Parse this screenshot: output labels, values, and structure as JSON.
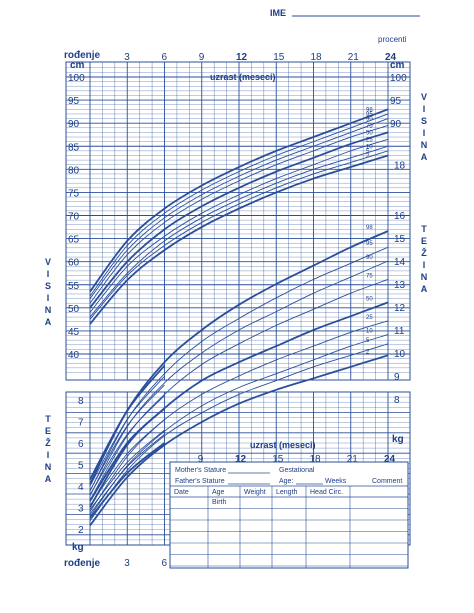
{
  "header": {
    "name_label": "IME",
    "percentiles_label": "procenti"
  },
  "chart_data": {
    "type": "line",
    "x_axis": {
      "label": "uzrast (meseci)",
      "start_label": "rođenje",
      "range": [
        0,
        24
      ],
      "ticks_top": [
        3,
        6,
        9,
        12,
        15,
        18,
        21,
        24
      ],
      "ticks_bottom": [
        3,
        6
      ],
      "ticks_mid": [
        9,
        12,
        15,
        18,
        21,
        24
      ]
    },
    "length_axis": {
      "unit": "cm",
      "label_left": "V I S I N A",
      "label_right": "V I S I N A",
      "range": [
        35,
        102
      ],
      "ticks_left": [
        100,
        95,
        90,
        85,
        80,
        75,
        70,
        65,
        60,
        55,
        50,
        45,
        40
      ],
      "ticks_right": [
        100,
        95,
        90
      ]
    },
    "weight_axis": {
      "unit": "kg",
      "label_left": "T E Ž I N A",
      "label_right": "T E Ž I N A",
      "range_right": [
        6.5,
        16
      ],
      "ticks_right_upper": [
        16,
        15,
        14,
        13,
        12,
        11,
        10,
        9,
        8
      ],
      "ticks_right_lower_kg": [
        18
      ],
      "range_left": [
        1,
        8.5
      ],
      "ticks_left": [
        8,
        7,
        6,
        5,
        4,
        3,
        2
      ]
    },
    "percentiles": [
      "98",
      "95",
      "90",
      "75",
      "50",
      "25",
      "10",
      "5",
      "2"
    ],
    "series_length": [
      {
        "name": "98",
        "values": [
          [
            0,
            53.5
          ],
          [
            3,
            64.5
          ],
          [
            6,
            71.5
          ],
          [
            9,
            76.5
          ],
          [
            12,
            80.5
          ],
          [
            15,
            84
          ],
          [
            18,
            87
          ],
          [
            21,
            90
          ],
          [
            24,
            93
          ]
        ]
      },
      {
        "name": "95",
        "values": [
          [
            0,
            52.5
          ],
          [
            3,
            63.5
          ],
          [
            6,
            70.5
          ],
          [
            9,
            75.5
          ],
          [
            12,
            79.5
          ],
          [
            15,
            83
          ],
          [
            18,
            86
          ],
          [
            21,
            89
          ],
          [
            24,
            92
          ]
        ]
      },
      {
        "name": "90",
        "values": [
          [
            0,
            52
          ],
          [
            3,
            62.5
          ],
          [
            6,
            69.5
          ],
          [
            9,
            74.5
          ],
          [
            12,
            78.5
          ],
          [
            15,
            82
          ],
          [
            18,
            85
          ],
          [
            21,
            88
          ],
          [
            24,
            91
          ]
        ]
      },
      {
        "name": "75",
        "values": [
          [
            0,
            51
          ],
          [
            3,
            61.5
          ],
          [
            6,
            68.5
          ],
          [
            9,
            73.5
          ],
          [
            12,
            77.5
          ],
          [
            15,
            81
          ],
          [
            18,
            84
          ],
          [
            21,
            87
          ],
          [
            24,
            89.5
          ]
        ]
      },
      {
        "name": "50",
        "values": [
          [
            0,
            50
          ],
          [
            3,
            60
          ],
          [
            6,
            67
          ],
          [
            9,
            72
          ],
          [
            12,
            76
          ],
          [
            15,
            79.5
          ],
          [
            18,
            82.5
          ],
          [
            21,
            85.5
          ],
          [
            24,
            88
          ]
        ]
      },
      {
        "name": "25",
        "values": [
          [
            0,
            49
          ],
          [
            3,
            59
          ],
          [
            6,
            65.5
          ],
          [
            9,
            70.5
          ],
          [
            12,
            74.5
          ],
          [
            15,
            78
          ],
          [
            18,
            81
          ],
          [
            21,
            84
          ],
          [
            24,
            86.5
          ]
        ]
      },
      {
        "name": "10",
        "values": [
          [
            0,
            48
          ],
          [
            3,
            57.5
          ],
          [
            6,
            64.5
          ],
          [
            9,
            69.5
          ],
          [
            12,
            73.5
          ],
          [
            15,
            77
          ],
          [
            18,
            80
          ],
          [
            21,
            82.5
          ],
          [
            24,
            85
          ]
        ]
      },
      {
        "name": "5",
        "values": [
          [
            0,
            47.5
          ],
          [
            3,
            57
          ],
          [
            6,
            63.5
          ],
          [
            9,
            68.5
          ],
          [
            12,
            72.5
          ],
          [
            15,
            76
          ],
          [
            18,
            79
          ],
          [
            21,
            81.5
          ],
          [
            24,
            84
          ]
        ]
      },
      {
        "name": "2",
        "values": [
          [
            0,
            46.5
          ],
          [
            3,
            56
          ],
          [
            6,
            62.5
          ],
          [
            9,
            67.5
          ],
          [
            12,
            71.5
          ],
          [
            15,
            75
          ],
          [
            18,
            78
          ],
          [
            21,
            80.5
          ],
          [
            24,
            83
          ]
        ]
      }
    ],
    "series_weight": [
      {
        "name": "98",
        "values": [
          [
            0,
            4.3
          ],
          [
            3,
            7.5
          ],
          [
            6,
            9.6
          ],
          [
            9,
            11
          ],
          [
            12,
            12.1
          ],
          [
            15,
            13
          ],
          [
            18,
            13.8
          ],
          [
            21,
            14.6
          ],
          [
            24,
            15.3
          ]
        ]
      },
      {
        "name": "95",
        "values": [
          [
            0,
            4.0
          ],
          [
            3,
            7.1
          ],
          [
            6,
            9.1
          ],
          [
            9,
            10.5
          ],
          [
            12,
            11.5
          ],
          [
            15,
            12.4
          ],
          [
            18,
            13.2
          ],
          [
            21,
            13.9
          ],
          [
            24,
            14.6
          ]
        ]
      },
      {
        "name": "90",
        "values": [
          [
            0,
            3.8
          ],
          [
            3,
            6.8
          ],
          [
            6,
            8.7
          ],
          [
            9,
            10.0
          ],
          [
            12,
            11.0
          ],
          [
            15,
            11.8
          ],
          [
            18,
            12.6
          ],
          [
            21,
            13.3
          ],
          [
            24,
            14.0
          ]
        ]
      },
      {
        "name": "75",
        "values": [
          [
            0,
            3.6
          ],
          [
            3,
            6.4
          ],
          [
            6,
            8.2
          ],
          [
            9,
            9.5
          ],
          [
            12,
            10.4
          ],
          [
            15,
            11.2
          ],
          [
            18,
            11.9
          ],
          [
            21,
            12.6
          ],
          [
            24,
            13.2
          ]
        ]
      },
      {
        "name": "50",
        "values": [
          [
            0,
            3.3
          ],
          [
            3,
            6.0
          ],
          [
            6,
            7.6
          ],
          [
            9,
            8.8
          ],
          [
            12,
            9.6
          ],
          [
            15,
            10.3
          ],
          [
            18,
            11.0
          ],
          [
            21,
            11.6
          ],
          [
            24,
            12.2
          ]
        ]
      },
      {
        "name": "25",
        "values": [
          [
            0,
            3.1
          ],
          [
            3,
            5.5
          ],
          [
            6,
            7.1
          ],
          [
            9,
            8.2
          ],
          [
            12,
            9.0
          ],
          [
            15,
            9.7
          ],
          [
            18,
            10.3
          ],
          [
            21,
            10.9
          ],
          [
            24,
            11.4
          ]
        ]
      },
      {
        "name": "10",
        "values": [
          [
            0,
            2.9
          ],
          [
            3,
            5.1
          ],
          [
            6,
            6.6
          ],
          [
            9,
            7.7
          ],
          [
            12,
            8.5
          ],
          [
            15,
            9.1
          ],
          [
            18,
            9.7
          ],
          [
            21,
            10.3
          ],
          [
            24,
            10.8
          ]
        ]
      },
      {
        "name": "5",
        "values": [
          [
            0,
            2.7
          ],
          [
            3,
            4.9
          ],
          [
            6,
            6.4
          ],
          [
            9,
            7.4
          ],
          [
            12,
            8.2
          ],
          [
            15,
            8.8
          ],
          [
            18,
            9.4
          ],
          [
            21,
            9.9
          ],
          [
            24,
            10.4
          ]
        ]
      },
      {
        "name": "2",
        "values": [
          [
            0,
            2.5
          ],
          [
            3,
            4.6
          ],
          [
            6,
            6.0
          ],
          [
            9,
            7.0
          ],
          [
            12,
            7.8
          ],
          [
            15,
            8.4
          ],
          [
            18,
            8.9
          ],
          [
            21,
            9.4
          ],
          [
            24,
            9.9
          ]
        ]
      }
    ]
  },
  "record_table": {
    "mothers_stature": "Mother's Stature",
    "fathers_stature": "Father's Stature",
    "gestational": "Gestational",
    "age_label": "Age:",
    "weeks_label": "Weeks",
    "comment_label": "Comment",
    "columns": [
      "Date",
      "Age",
      "Weight",
      "Length",
      "Head Circ."
    ],
    "first_row_age": "Birth"
  }
}
